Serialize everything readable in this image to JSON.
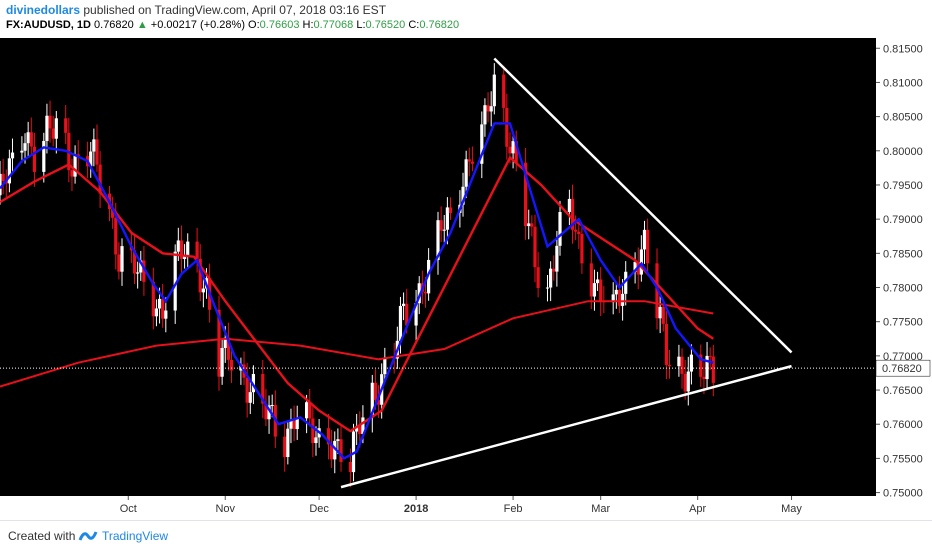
{
  "header": {
    "author": "divinedollars",
    "published_text": "published on TradingView.com, April 07, 2018 03:16 EST",
    "symbol": "FX:AUDUSD, 1D",
    "last": "0.76820",
    "change": "+0.00217 (+0.28%)",
    "o_label": "O:",
    "o_value": "0.76603",
    "h_label": "H:",
    "h_value": "0.77068",
    "l_label": "L:",
    "l_value": "0.76520",
    "c_label": "C:",
    "c_value": "0.76820"
  },
  "footer": {
    "created_with": "Created with",
    "brand": "TradingView"
  },
  "colors": {
    "background": "#000000",
    "bull_candle": "#ffffff",
    "bear_candle": "#e8101a",
    "ema_fast": "#1515ff",
    "ema_slow": "#e8101a",
    "trendline": "#ffffff",
    "price_label_bg": "#ffffff"
  },
  "chart_data": {
    "type": "candlestick",
    "symbol": "FX:AUDUSD",
    "timeframe": "1D",
    "ylim": [
      0.7495,
      0.8165
    ],
    "y_ticks": [
      "0.81500",
      "0.81000",
      "0.80500",
      "0.80000",
      "0.79500",
      "0.79000",
      "0.78500",
      "0.78000",
      "0.77500",
      "0.77000",
      "0.76500",
      "0.76000",
      "0.75500",
      "0.75000"
    ],
    "current_price": "0.76820",
    "x_labels": [
      {
        "label": "Oct",
        "date": "2017-10-01"
      },
      {
        "label": "Nov",
        "date": "2017-11-01"
      },
      {
        "label": "Dec",
        "date": "2017-12-01"
      },
      {
        "label": "2018",
        "date": "2018-01-01",
        "bold": true
      },
      {
        "label": "Feb",
        "date": "2018-02-01"
      },
      {
        "label": "Mar",
        "date": "2018-03-01"
      },
      {
        "label": "Apr",
        "date": "2018-04-01"
      },
      {
        "label": "May",
        "date": "2018-05-01"
      }
    ],
    "xlim": [
      "2017-08-21",
      "2018-05-28"
    ],
    "close_path": [
      [
        "2017-08-21",
        0.7935
      ],
      [
        "2017-08-25",
        0.798
      ],
      [
        "2017-08-29",
        0.804
      ],
      [
        "2017-09-01",
        0.799
      ],
      [
        "2017-09-06",
        0.802
      ],
      [
        "2017-09-09",
        0.805
      ],
      [
        "2017-09-12",
        0.8
      ],
      [
        "2017-09-15",
        0.798
      ],
      [
        "2017-09-19",
        0.799
      ],
      [
        "2017-09-22",
        0.796
      ],
      [
        "2017-09-25",
        0.792
      ],
      [
        "2017-09-28",
        0.785
      ],
      [
        "2017-10-02",
        0.783
      ],
      [
        "2017-10-05",
        0.781
      ],
      [
        "2017-10-09",
        0.779
      ],
      [
        "2017-10-12",
        0.777
      ],
      [
        "2017-10-16",
        0.783
      ],
      [
        "2017-10-19",
        0.785
      ],
      [
        "2017-10-23",
        0.7845
      ],
      [
        "2017-10-26",
        0.78
      ],
      [
        "2017-10-30",
        0.768
      ],
      [
        "2017-11-02",
        0.77
      ],
      [
        "2017-11-06",
        0.768
      ],
      [
        "2017-11-09",
        0.766
      ],
      [
        "2017-11-13",
        0.762
      ],
      [
        "2017-11-16",
        0.76
      ],
      [
        "2017-11-20",
        0.758
      ],
      [
        "2017-11-23",
        0.762
      ],
      [
        "2017-11-27",
        0.76
      ],
      [
        "2017-11-30",
        0.757
      ],
      [
        "2017-12-04",
        0.759
      ],
      [
        "2017-12-07",
        0.757
      ],
      [
        "2017-12-11",
        0.753
      ],
      [
        "2017-12-14",
        0.76
      ],
      [
        "2017-12-18",
        0.765
      ],
      [
        "2017-12-21",
        0.767
      ],
      [
        "2017-12-25",
        0.77
      ],
      [
        "2017-12-28",
        0.776
      ],
      [
        "2018-01-02",
        0.78
      ],
      [
        "2018-01-05",
        0.783
      ],
      [
        "2018-01-09",
        0.788
      ],
      [
        "2018-01-12",
        0.79
      ],
      [
        "2018-01-16",
        0.797
      ],
      [
        "2018-01-19",
        0.8
      ],
      [
        "2018-01-23",
        0.803
      ],
      [
        "2018-01-26",
        0.81
      ],
      [
        "2018-01-29",
        0.806
      ],
      [
        "2018-02-01",
        0.8
      ],
      [
        "2018-02-05",
        0.79
      ],
      [
        "2018-02-08",
        0.783
      ],
      [
        "2018-02-12",
        0.78
      ],
      [
        "2018-02-15",
        0.788
      ],
      [
        "2018-02-19",
        0.791
      ],
      [
        "2018-02-22",
        0.785
      ],
      [
        "2018-02-26",
        0.782
      ],
      [
        "2018-03-01",
        0.78
      ],
      [
        "2018-03-05",
        0.776
      ],
      [
        "2018-03-08",
        0.779
      ],
      [
        "2018-03-12",
        0.785
      ],
      [
        "2018-03-15",
        0.787
      ],
      [
        "2018-03-19",
        0.776
      ],
      [
        "2018-03-22",
        0.77
      ],
      [
        "2018-03-26",
        0.769
      ],
      [
        "2018-03-29",
        0.768
      ],
      [
        "2018-04-02",
        0.7665
      ],
      [
        "2018-04-06",
        0.7682
      ]
    ],
    "ema_fast_path": [
      [
        "2017-08-21",
        0.7945
      ],
      [
        "2017-08-28",
        0.7985
      ],
      [
        "2017-09-04",
        0.8005
      ],
      [
        "2017-09-11",
        0.8
      ],
      [
        "2017-09-18",
        0.7985
      ],
      [
        "2017-09-25",
        0.7925
      ],
      [
        "2017-10-02",
        0.786
      ],
      [
        "2017-10-09",
        0.7805
      ],
      [
        "2017-10-13",
        0.778
      ],
      [
        "2017-10-18",
        0.782
      ],
      [
        "2017-10-23",
        0.784
      ],
      [
        "2017-10-28",
        0.778
      ],
      [
        "2017-11-04",
        0.77
      ],
      [
        "2017-11-11",
        0.765
      ],
      [
        "2017-11-18",
        0.76
      ],
      [
        "2017-11-25",
        0.761
      ],
      [
        "2017-12-02",
        0.7585
      ],
      [
        "2017-12-09",
        0.755
      ],
      [
        "2017-12-13",
        0.756
      ],
      [
        "2017-12-20",
        0.764
      ],
      [
        "2017-12-27",
        0.772
      ],
      [
        "2018-01-05",
        0.782
      ],
      [
        "2018-01-12",
        0.788
      ],
      [
        "2018-01-19",
        0.796
      ],
      [
        "2018-01-26",
        0.804
      ],
      [
        "2018-01-31",
        0.804
      ],
      [
        "2018-02-06",
        0.795
      ],
      [
        "2018-02-12",
        0.786
      ],
      [
        "2018-02-17",
        0.788
      ],
      [
        "2018-02-22",
        0.79
      ],
      [
        "2018-03-01",
        0.784
      ],
      [
        "2018-03-07",
        0.78
      ],
      [
        "2018-03-14",
        0.7835
      ],
      [
        "2018-03-19",
        0.78
      ],
      [
        "2018-03-25",
        0.774
      ],
      [
        "2018-04-02",
        0.7695
      ],
      [
        "2018-04-06",
        0.769
      ]
    ],
    "ema_slow_path": [
      [
        "2017-08-21",
        0.7925
      ],
      [
        "2017-09-01",
        0.7955
      ],
      [
        "2017-09-12",
        0.798
      ],
      [
        "2017-09-22",
        0.794
      ],
      [
        "2017-10-02",
        0.788
      ],
      [
        "2017-10-12",
        0.785
      ],
      [
        "2017-10-22",
        0.7845
      ],
      [
        "2017-11-01",
        0.778
      ],
      [
        "2017-11-11",
        0.772
      ],
      [
        "2017-11-21",
        0.766
      ],
      [
        "2017-12-01",
        0.762
      ],
      [
        "2017-12-11",
        0.759
      ],
      [
        "2017-12-21",
        0.762
      ],
      [
        "2018-01-01",
        0.772
      ],
      [
        "2018-01-11",
        0.781
      ],
      [
        "2018-01-21",
        0.79
      ],
      [
        "2018-01-31",
        0.799
      ],
      [
        "2018-02-10",
        0.795
      ],
      [
        "2018-02-20",
        0.79
      ],
      [
        "2018-03-02",
        0.787
      ],
      [
        "2018-03-12",
        0.784
      ],
      [
        "2018-03-22",
        0.779
      ],
      [
        "2018-04-01",
        0.774
      ],
      [
        "2018-04-06",
        0.7725
      ]
    ],
    "sma_long_path": [
      [
        "2017-08-21",
        0.7655
      ],
      [
        "2017-09-15",
        0.769
      ],
      [
        "2017-10-10",
        0.7715
      ],
      [
        "2017-11-01",
        0.7725
      ],
      [
        "2017-11-25",
        0.7715
      ],
      [
        "2017-12-20",
        0.7695
      ],
      [
        "2018-01-10",
        0.771
      ],
      [
        "2018-02-01",
        0.7755
      ],
      [
        "2018-02-25",
        0.778
      ],
      [
        "2018-03-15",
        0.778
      ],
      [
        "2018-04-06",
        0.7762
      ]
    ],
    "trendlines": [
      {
        "name": "upper",
        "from": [
          "2018-01-26",
          0.8135
        ],
        "to": [
          "2018-05-01",
          0.7705
        ]
      },
      {
        "name": "lower",
        "from": [
          "2017-12-08",
          0.7508
        ],
        "to": [
          "2018-05-01",
          0.7685
        ]
      }
    ]
  }
}
